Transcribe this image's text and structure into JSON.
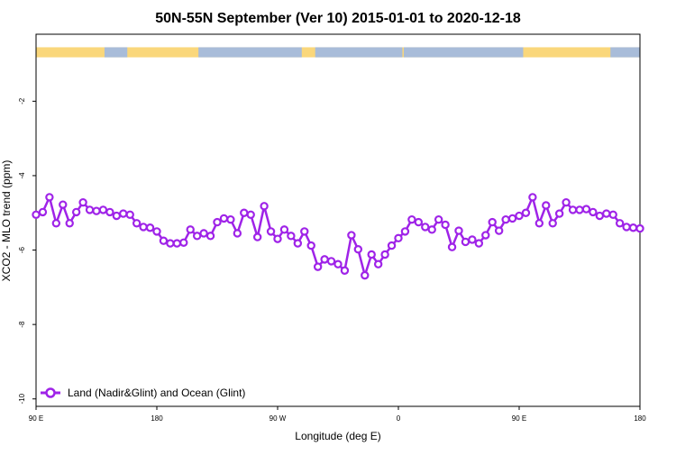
{
  "chart_data": {
    "type": "line",
    "title": "50N-55N September (Ver 10)   2015-01-01 to 2020-12-18",
    "xlabel": "Longitude (deg E)",
    "ylabel": "XCO2 - MLO trend (ppm)",
    "x_range_deg_east": [
      90,
      540
    ],
    "ylim": [
      -10.2,
      -0.2
    ],
    "x_ticks": [
      {
        "value": 90,
        "label": "90 E"
      },
      {
        "value": 180,
        "label": "180"
      },
      {
        "value": 270,
        "label": "90 W"
      },
      {
        "value": 360,
        "label": "0"
      },
      {
        "value": 450,
        "label": "90 E"
      },
      {
        "value": 540,
        "label": "180"
      }
    ],
    "y_ticks": [
      {
        "value": -2,
        "label": "-2"
      },
      {
        "value": -4,
        "label": "-4"
      },
      {
        "value": -6,
        "label": "-6"
      },
      {
        "value": -8,
        "label": "-8"
      },
      {
        "value": -10,
        "label": "-10"
      }
    ],
    "grid": false,
    "legend_position": "bottom-left",
    "land_ocean_strip": {
      "y_range": [
        -0.55,
        -0.82
      ],
      "land_color": "#fad77b",
      "ocean_color": "#a8bcd9",
      "ocean_segments_deg_east": [
        [
          141,
          158
        ],
        [
          211,
          288
        ],
        [
          298,
          363
        ],
        [
          364,
          453
        ],
        [
          518,
          540
        ]
      ]
    },
    "series": [
      {
        "name": "Land (Nadir&Glint) and Ocean (Glint)",
        "color": "#9f23e8",
        "x": [
          90,
          95,
          100,
          105,
          110,
          115,
          120,
          125,
          130,
          135,
          140,
          145,
          150,
          155,
          160,
          165,
          170,
          175,
          180,
          185,
          190,
          195,
          200,
          205,
          210,
          215,
          220,
          225,
          230,
          235,
          240,
          245,
          250,
          255,
          260,
          265,
          270,
          275,
          280,
          285,
          290,
          295,
          300,
          305,
          310,
          315,
          320,
          325,
          330,
          335,
          340,
          345,
          350,
          355,
          360,
          365,
          370,
          375,
          380,
          385,
          390,
          395,
          400,
          405,
          410,
          415,
          420,
          425,
          430,
          435,
          440,
          445,
          450,
          455,
          460,
          465,
          470,
          475,
          480,
          485,
          490,
          495,
          500,
          505,
          510,
          515,
          520,
          525,
          530,
          535,
          540
        ],
        "values": [
          -5.05,
          -4.98,
          -4.58,
          -5.28,
          -4.78,
          -5.28,
          -4.98,
          -4.72,
          -4.92,
          -4.95,
          -4.92,
          -4.98,
          -5.08,
          -5.02,
          -5.05,
          -5.28,
          -5.38,
          -5.4,
          -5.5,
          -5.75,
          -5.82,
          -5.82,
          -5.8,
          -5.45,
          -5.62,
          -5.55,
          -5.62,
          -5.25,
          -5.15,
          -5.18,
          -5.55,
          -5.0,
          -5.05,
          -5.65,
          -4.82,
          -5.5,
          -5.7,
          -5.45,
          -5.62,
          -5.82,
          -5.5,
          -5.88,
          -6.45,
          -6.25,
          -6.3,
          -6.38,
          -6.55,
          -5.6,
          -5.98,
          -6.68,
          -6.12,
          -6.38,
          -6.12,
          -5.88,
          -5.68,
          -5.5,
          -5.18,
          -5.25,
          -5.38,
          -5.45,
          -5.18,
          -5.32,
          -5.92,
          -5.48,
          -5.78,
          -5.72,
          -5.82,
          -5.6,
          -5.25,
          -5.48,
          -5.18,
          -5.15,
          -5.08,
          -5.0,
          -4.58,
          -5.28,
          -4.8,
          -5.28,
          -5.02,
          -4.72,
          -4.92,
          -4.92,
          -4.9,
          -4.98,
          -5.08,
          -5.02,
          -5.05,
          -5.28,
          -5.38,
          -5.4,
          -5.42
        ]
      }
    ]
  }
}
